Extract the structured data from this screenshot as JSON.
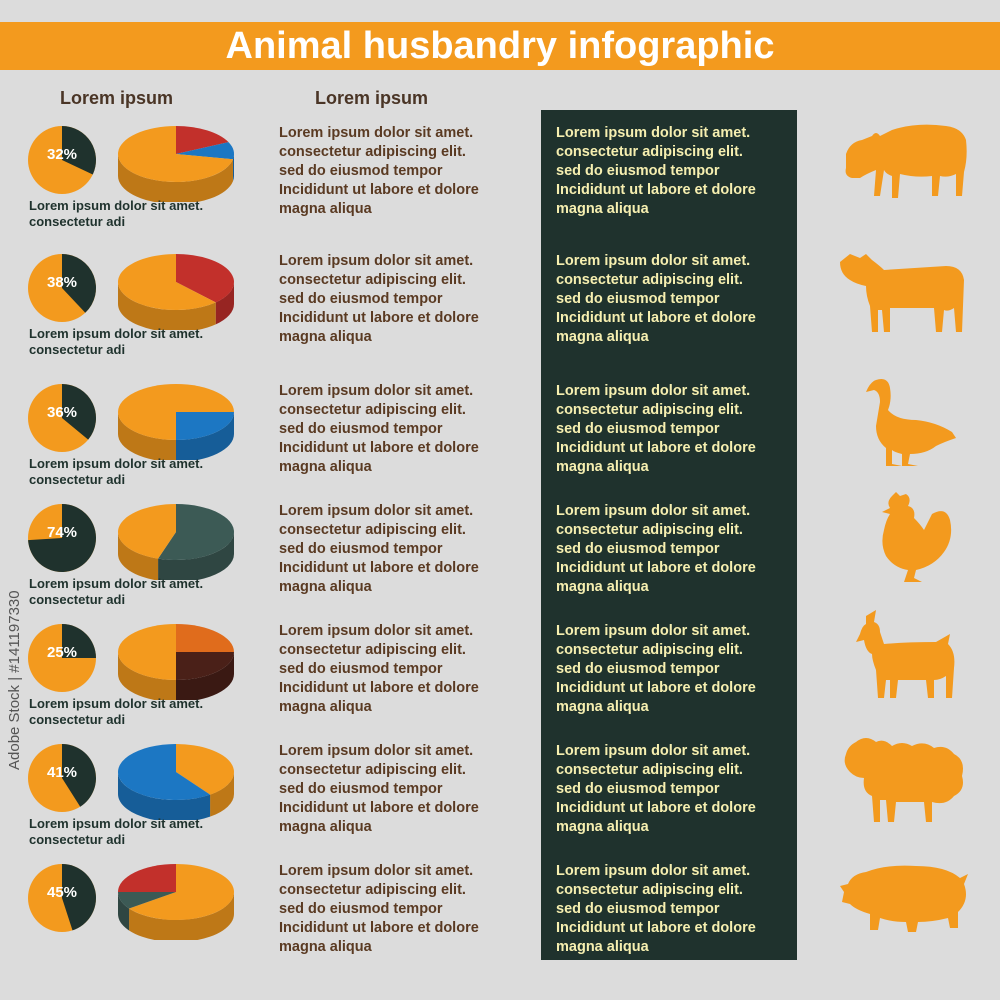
{
  "title": "Animal husbandry infographic",
  "headers": {
    "left": "Lorem ipsum",
    "middle": "Lorem ipsum"
  },
  "stamp": "Adobe Stock | #141197330",
  "caption_lines": [
    "Lorem ipsum dolor sit amet.",
    "consectetur adi"
  ],
  "paragraph_lines": [
    "Lorem ipsum dolor sit amet.",
    "consectetur adipiscing elit.",
    "sed do eiusmod tempor",
    "Incididunt ut labore et dolore",
    "magna aliqua"
  ],
  "colors": {
    "orange": "#f39a1e",
    "dark": "#1f322d",
    "background": "#dcdcdc",
    "brown_text": "#5a3a22",
    "cream_text": "#f6efb0"
  },
  "chart_data": [
    {
      "type": "pie",
      "label": "32%",
      "value": 32,
      "pie3d_slices": [
        {
          "value": 0.18,
          "color": "#c2302b"
        },
        {
          "value": 0.1,
          "color": "#1c77c3"
        },
        {
          "value": 0.72,
          "color": "#f39a1e"
        }
      ],
      "animal_icon": "bull-icon"
    },
    {
      "type": "pie",
      "label": "38%",
      "value": 38,
      "pie3d_slices": [
        {
          "value": 0.38,
          "color": "#c2302b"
        },
        {
          "value": 0.62,
          "color": "#f39a1e"
        }
      ],
      "animal_icon": "cow-icon"
    },
    {
      "type": "pie",
      "label": "36%",
      "value": 36,
      "pie3d_slices": [
        {
          "value": 0.25,
          "color": "#f39a1e"
        },
        {
          "value": 0.25,
          "color": "#1c77c3"
        },
        {
          "value": 0.5,
          "color": "#f39a1e"
        }
      ],
      "animal_icon": "goose-icon"
    },
    {
      "type": "pie",
      "label": "74%",
      "value": 74,
      "pie3d_slices": [
        {
          "value": 0.55,
          "color": "#3c5a55"
        },
        {
          "value": 0.45,
          "color": "#f39a1e"
        }
      ],
      "animal_icon": "hen-icon"
    },
    {
      "type": "pie",
      "label": "25%",
      "value": 25,
      "pie3d_slices": [
        {
          "value": 0.25,
          "color": "#e06c1c"
        },
        {
          "value": 0.25,
          "color": "#4a2018"
        },
        {
          "value": 0.5,
          "color": "#f39a1e"
        }
      ],
      "animal_icon": "goat-icon"
    },
    {
      "type": "pie",
      "label": "41%",
      "value": 41,
      "pie3d_slices": [
        {
          "value": 0.4,
          "color": "#f39a1e"
        },
        {
          "value": 0.6,
          "color": "#1c77c3"
        }
      ],
      "animal_icon": "sheep-icon"
    },
    {
      "type": "pie",
      "label": "45%",
      "value": 45,
      "pie3d_slices": [
        {
          "value": 0.65,
          "color": "#f39a1e"
        },
        {
          "value": 0.1,
          "color": "#3c5a55"
        },
        {
          "value": 0.25,
          "color": "#c2302b"
        }
      ],
      "animal_icon": "pig-icon"
    }
  ]
}
